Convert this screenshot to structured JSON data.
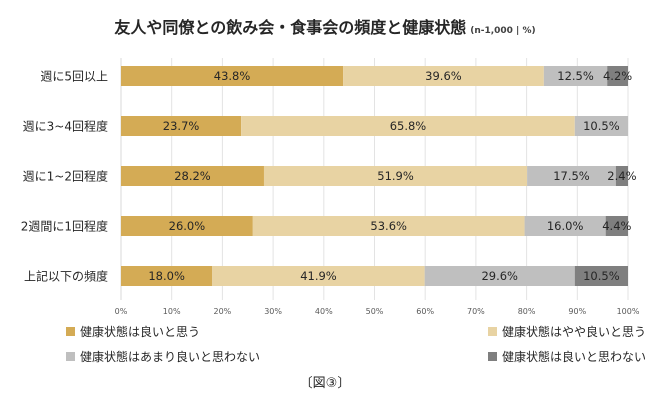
{
  "chart_data": {
    "type": "bar",
    "orientation": "horizontal",
    "stacked": true,
    "title": "友人や同僚との飲み会・食事会の頻度と健康状態",
    "subtitle": "(n-1,000 | %)",
    "categories": [
      "週に5回以上",
      "週に3~4回程度",
      "週に1~2回程度",
      "2週間に1回程度",
      "上記以下の頻度"
    ],
    "series": [
      {
        "name": "健康状態は良いと思う",
        "color": "#d4ab55",
        "values": [
          43.8,
          23.7,
          28.2,
          26.0,
          18.0
        ]
      },
      {
        "name": "健康状態はやや良いと思う",
        "color": "#e8d3a3",
        "values": [
          39.6,
          65.8,
          51.9,
          53.6,
          41.9
        ]
      },
      {
        "name": "健康状態はあまり良いと思わない",
        "color": "#bfbfbf",
        "values": [
          12.5,
          10.5,
          17.5,
          16.0,
          29.6
        ]
      },
      {
        "name": "健康状態は良いと思わない",
        "color": "#7f7f7f",
        "values": [
          4.2,
          null,
          2.4,
          4.4,
          10.5
        ]
      }
    ],
    "xlim": [
      0,
      100
    ],
    "xticks": [
      "0%",
      "10%",
      "20%",
      "30%",
      "40%",
      "50%",
      "60%",
      "70%",
      "80%",
      "90%",
      "100%"
    ],
    "grid": true,
    "legend_position": "bottom",
    "xlabel": "",
    "ylabel": ""
  },
  "caption": "〔図③〕"
}
